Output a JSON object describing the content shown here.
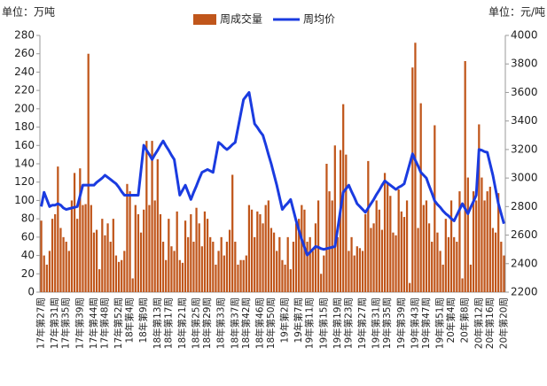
{
  "chart_data": {
    "type": "bar",
    "y_label": "单位：万吨",
    "y2_label": "单位：元/吨",
    "categories": [
      "17年第27周",
      null,
      null,
      null,
      null,
      "17年第31周",
      null,
      null,
      null,
      "17年第35周",
      null,
      null,
      null,
      null,
      "17年第39周",
      null,
      null,
      null,
      null,
      "17年第44周",
      null,
      null,
      null,
      "17年第48周",
      null,
      null,
      null,
      null,
      "17年第52周",
      null,
      null,
      null,
      "18年第4周",
      null,
      null,
      null,
      null,
      "18年第9周",
      null,
      null,
      null,
      null,
      "18年第13周",
      null,
      null,
      null,
      "18年第17周",
      null,
      null,
      null,
      null,
      "18年第21周",
      null,
      null,
      null,
      null,
      "18年第25周",
      null,
      null,
      null,
      "18年第29周",
      null,
      null,
      null,
      null,
      "18年第33周",
      null,
      null,
      null,
      null,
      "18年第37周",
      null,
      null,
      null,
      "18年第42周",
      null,
      null,
      null,
      null,
      "18年第46周",
      null,
      null,
      null,
      "18年第50周",
      null,
      null,
      null,
      null,
      "19年第2周",
      null,
      null,
      null,
      null,
      "19年第7周",
      null,
      null,
      null,
      "19年第11周",
      null,
      null,
      null,
      null,
      "19年第15周",
      null,
      null,
      null,
      null,
      "19年第19周",
      null,
      null,
      null,
      "19年第23周",
      null,
      null,
      null,
      null,
      "19年第27周",
      null,
      null,
      null,
      null,
      "19年第31周",
      null,
      null,
      null,
      "19年第35周",
      null,
      null,
      null,
      null,
      "19年第39周",
      null,
      null,
      null,
      null,
      "19年第43周",
      null,
      null,
      null,
      "19年第47周",
      null,
      null,
      null,
      null,
      "19年第51周",
      null,
      null,
      null,
      "20年第4周",
      null,
      null,
      null,
      null,
      "20年第8周",
      null,
      null,
      null,
      null,
      "20年第12周",
      null,
      null,
      null,
      "20年第16周",
      null,
      null,
      null,
      null,
      "20年第20周"
    ],
    "series": [
      {
        "name": "周成交量",
        "type": "bar",
        "color": "#c0561b",
        "values": [
          78,
          40,
          30,
          45,
          80,
          85,
          137,
          70,
          60,
          55,
          45,
          100,
          130,
          80,
          135,
          95,
          96,
          260,
          95,
          65,
          68,
          25,
          80,
          62,
          75,
          55,
          80,
          40,
          33,
          35,
          45,
          118,
          110,
          15,
          95,
          85,
          65,
          90,
          165,
          95,
          165,
          100,
          145,
          85,
          55,
          35,
          80,
          50,
          45,
          88,
          35,
          32,
          78,
          60,
          85,
          55,
          92,
          75,
          50,
          88,
          80,
          60,
          55,
          30,
          45,
          60,
          40,
          55,
          68,
          128,
          55,
          30,
          35,
          35,
          40,
          95,
          90,
          60,
          88,
          85,
          75,
          95,
          100,
          70,
          65,
          45,
          60,
          35,
          30,
          60,
          25,
          55,
          75,
          80,
          95,
          90,
          55,
          60,
          45,
          75,
          100,
          20,
          40,
          140,
          110,
          100,
          160,
          60,
          155,
          205,
          150,
          45,
          60,
          40,
          50,
          48,
          45,
          85,
          143,
          70,
          75,
          100,
          90,
          68,
          130,
          120,
          105,
          65,
          62,
          112,
          88,
          82,
          100,
          10,
          245,
          272,
          70,
          206,
          95,
          100,
          75,
          55,
          182,
          65,
          45,
          30,
          80,
          60,
          100,
          60,
          55,
          110,
          15,
          252,
          125,
          30,
          110,
          100,
          183,
          125,
          100,
          110,
          115,
          70,
          65,
          108,
          55,
          40
        ]
      },
      {
        "name": "周均价",
        "type": "line",
        "axis": "y2",
        "color": "#1a3be0",
        "values": [
          2800,
          2900,
          2850,
          2800,
          2810,
          2810,
          2820,
          2810,
          2790,
          2780,
          2785,
          2790,
          2795,
          2800,
          2875,
          2950,
          2950,
          2950,
          2950,
          2950,
          2970,
          2985,
          3000,
          3020,
          3005,
          2990,
          2975,
          2960,
          2935,
          2905,
          2880,
          2880,
          2880,
          2880,
          2880,
          2880,
          3055,
          3230,
          3195,
          3165,
          3130,
          3165,
          3195,
          3230,
          3260,
          3225,
          3195,
          3160,
          3130,
          3005,
          2880,
          2915,
          2950,
          2900,
          2850,
          2900,
          2945,
          2995,
          3040,
          3050,
          3060,
          3050,
          3040,
          3145,
          3250,
          3235,
          3215,
          3200,
          3215,
          3235,
          3250,
          3350,
          3450,
          3550,
          3575,
          3600,
          3490,
          3380,
          3355,
          3325,
          3300,
          3235,
          3165,
          3100,
          3025,
          2950,
          2865,
          2780,
          2805,
          2825,
          2850,
          2775,
          2700,
          2635,
          2570,
          2515,
          2460,
          2480,
          2500,
          2520,
          2515,
          2505,
          2500,
          2505,
          2510,
          2515,
          2520,
          2645,
          2775,
          2900,
          2925,
          2950,
          2905,
          2865,
          2820,
          2800,
          2780,
          2760,
          2790,
          2820,
          2850,
          2885,
          2915,
          2950,
          2980,
          2965,
          2950,
          2935,
          2920,
          2935,
          2945,
          2960,
          3030,
          3100,
          3170,
          3125,
          3085,
          3040,
          3020,
          3000,
          2945,
          2895,
          2840,
          2815,
          2795,
          2770,
          2750,
          2735,
          2715,
          2700,
          2740,
          2780,
          2820,
          2785,
          2750,
          2795,
          2835,
          2880,
          3200,
          3195,
          3185,
          3180,
          3100,
          3020,
          2920,
          2820,
          2750,
          2680
        ]
      }
    ],
    "ylim": [
      0,
      280
    ],
    "yticks": [
      0,
      20,
      40,
      60,
      80,
      100,
      120,
      140,
      160,
      180,
      200,
      220,
      240,
      260,
      280
    ],
    "y2lim": [
      2200,
      4000
    ],
    "y2ticks": [
      2200,
      2400,
      2600,
      2800,
      3000,
      3200,
      3400,
      3600,
      3800,
      4000
    ],
    "legend": "top"
  }
}
